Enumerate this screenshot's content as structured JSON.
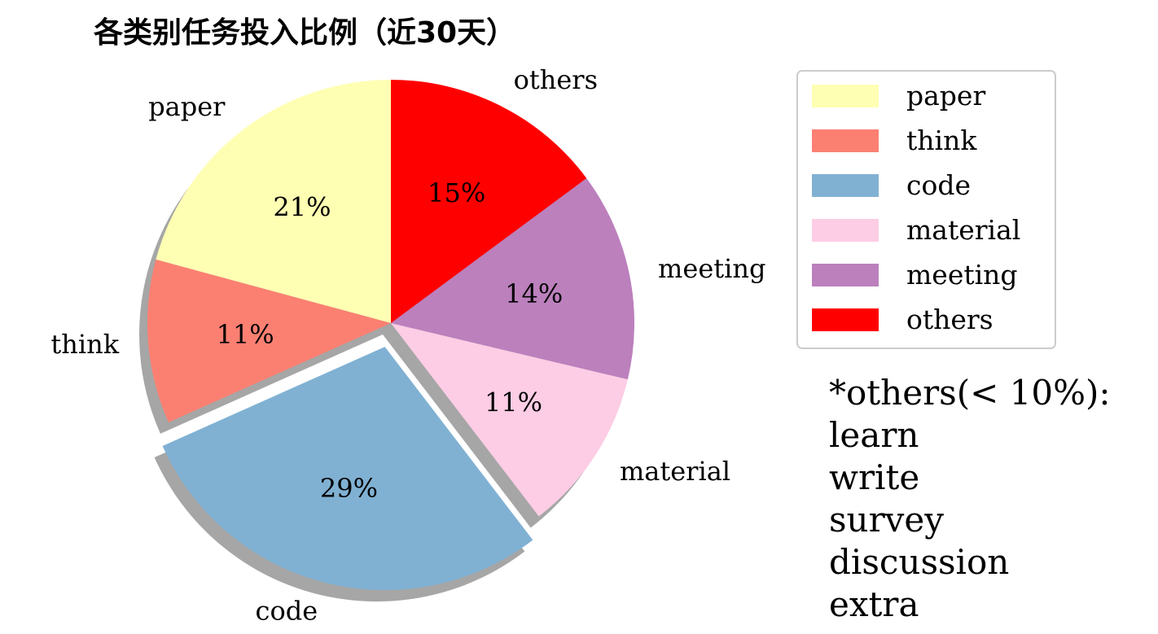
{
  "chart_data": {
    "type": "pie",
    "title": "各类别任务投入比例（近30天）",
    "categories": [
      "paper",
      "think",
      "code",
      "material",
      "meeting",
      "others"
    ],
    "values": [
      21,
      11,
      29,
      11,
      14,
      15
    ],
    "percent_labels": [
      "21%",
      "11%",
      "29%",
      "11%",
      "14%",
      "15%"
    ],
    "colors": [
      "#ffffb3",
      "#fb8072",
      "#80b1d3",
      "#fccde5",
      "#bc80bd",
      "#ff0000"
    ],
    "exploded": "code",
    "shadow": true,
    "start_angle_deg": 90,
    "direction": "counterclockwise",
    "legend": {
      "position": "right",
      "entries": [
        "paper",
        "think",
        "code",
        "material",
        "meeting",
        "others"
      ]
    }
  },
  "note": {
    "lines": [
      "*others(< 10%):",
      "learn",
      "write",
      "survey",
      "discussion",
      "extra"
    ]
  }
}
